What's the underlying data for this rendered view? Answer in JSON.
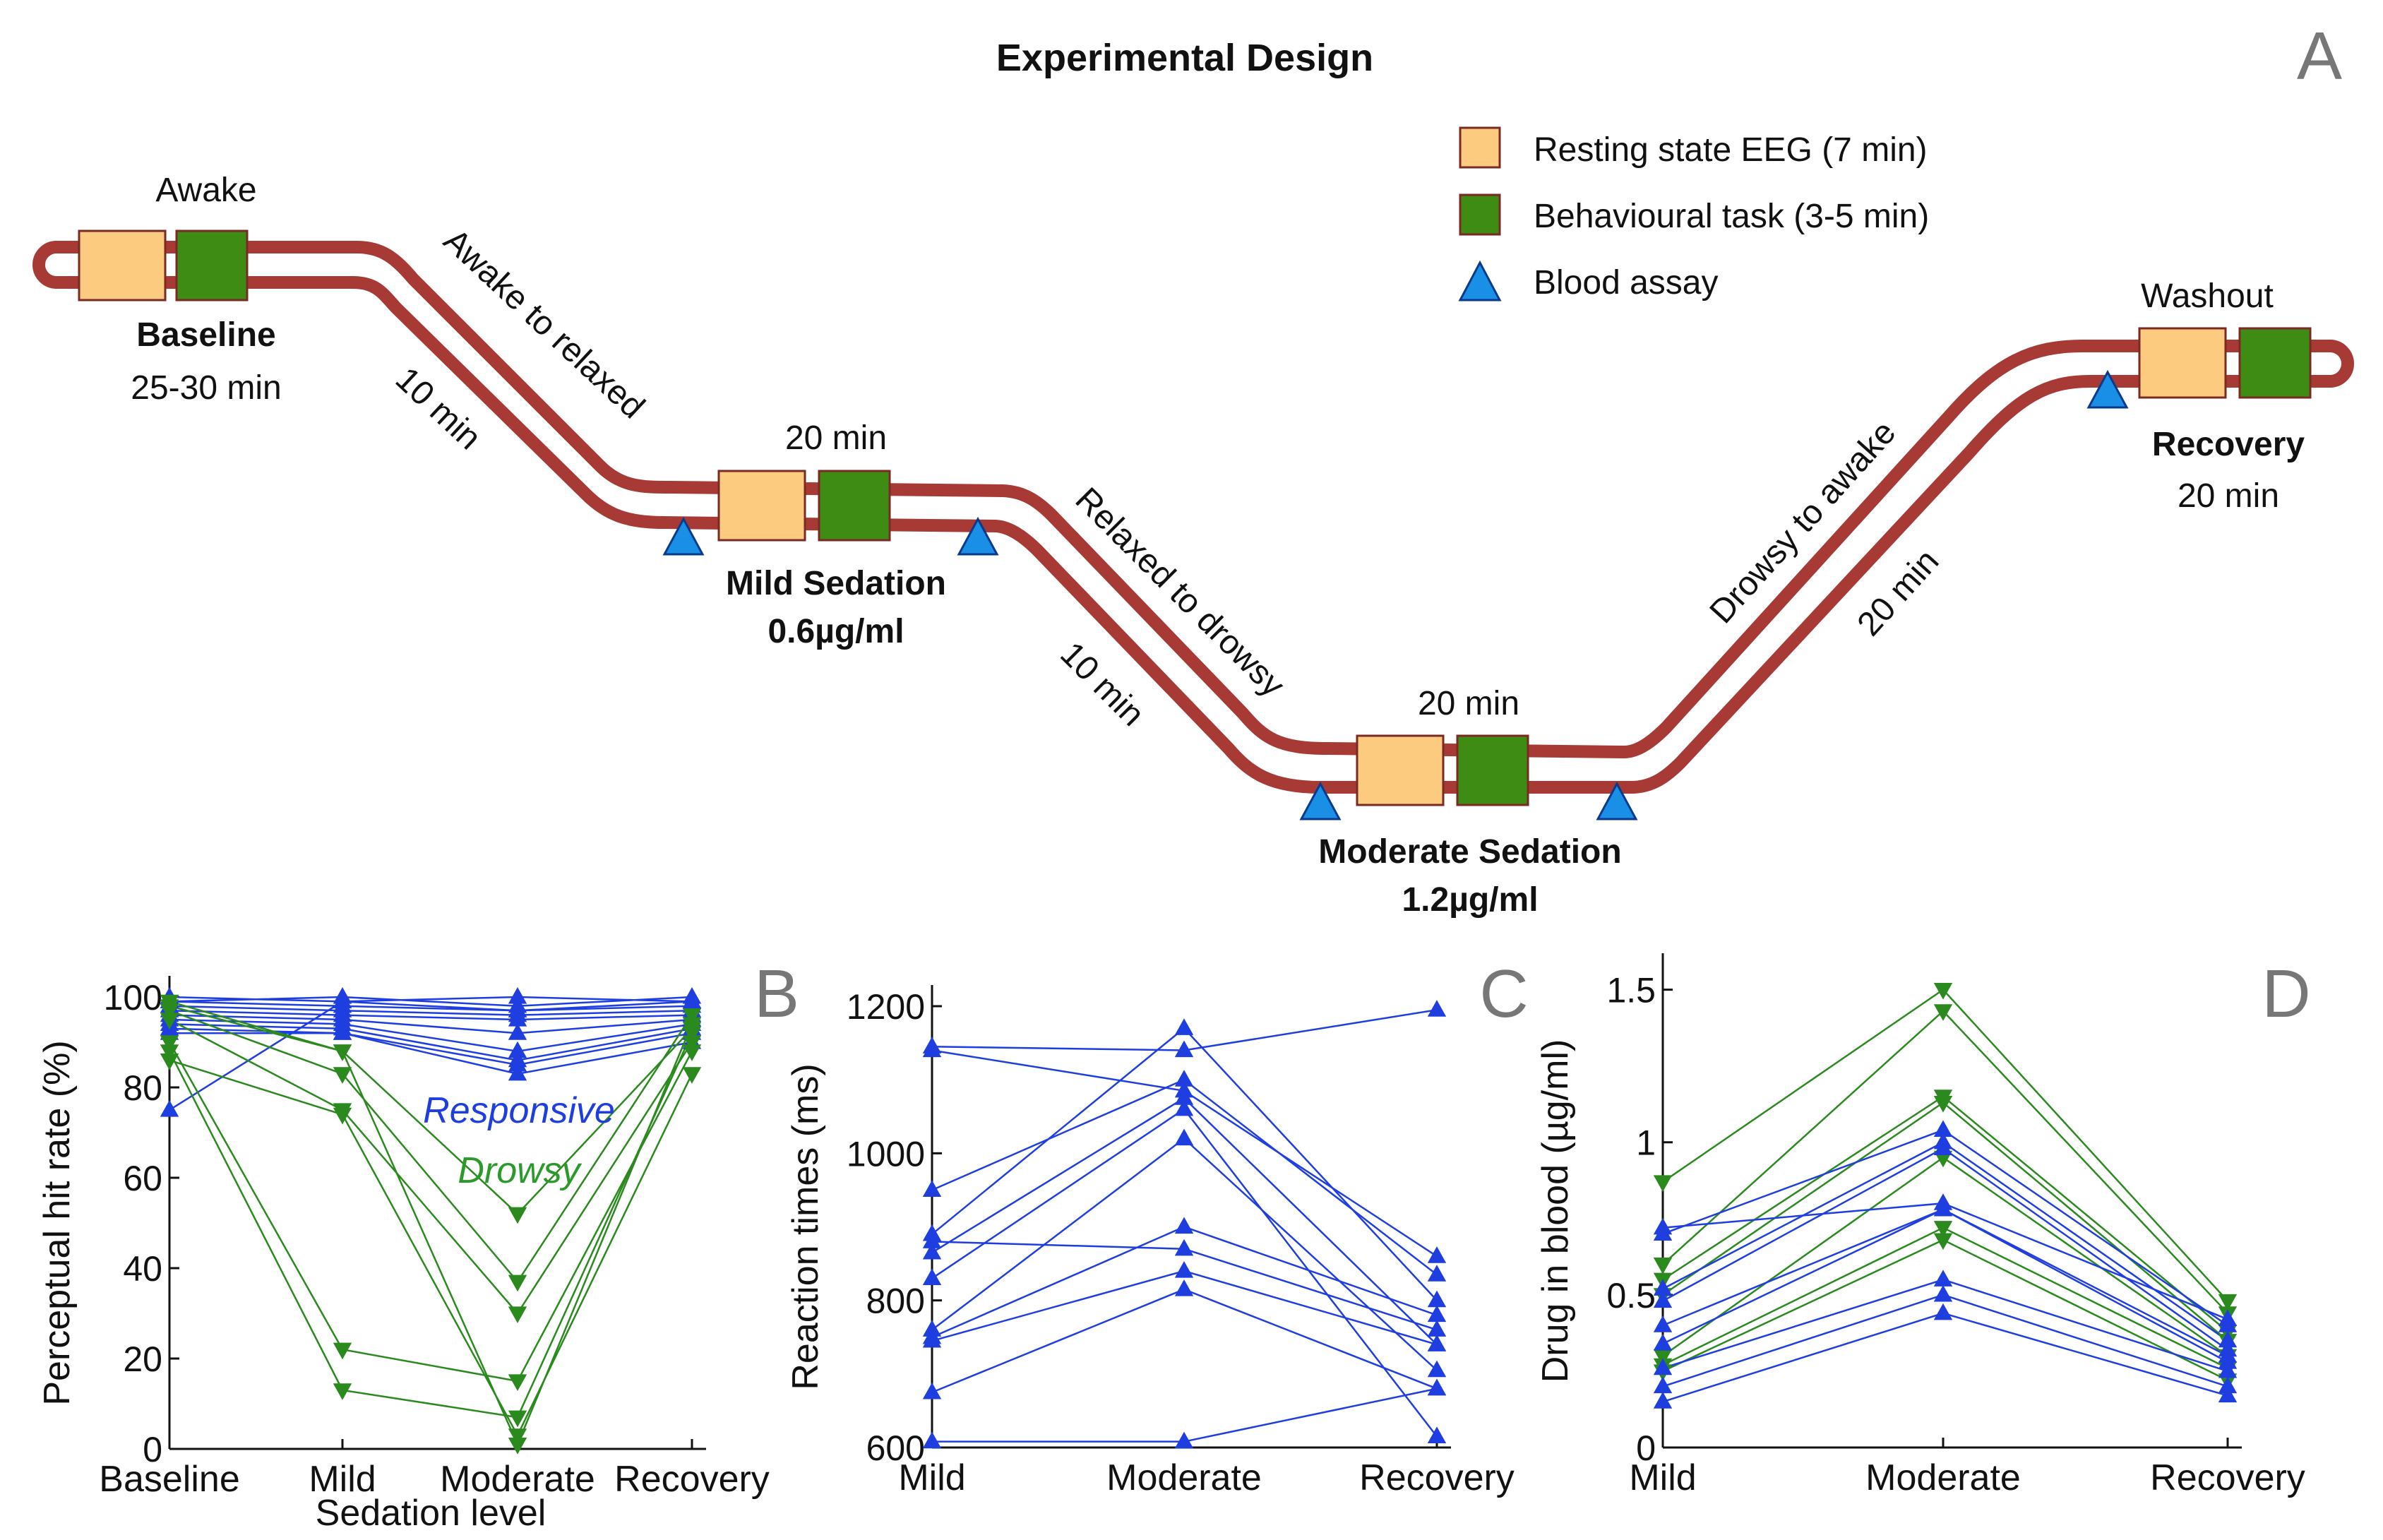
{
  "panel_a": {
    "title": "Experimental Design",
    "panel_letter": "A",
    "legend": [
      {
        "label": "Resting state EEG (7 min)",
        "icon": "square",
        "color": "#fdcb7f"
      },
      {
        "label": "Behavioural task (3-5 min)",
        "icon": "square",
        "color": "#3f8c14"
      },
      {
        "label": "Blood assay",
        "icon": "triangle",
        "color": "#1a8fe6"
      }
    ],
    "colors": {
      "track": "#a83a36",
      "eeg": "#fdcb7f",
      "task": "#3f8c14",
      "blood": "#1a8fe6"
    },
    "stages": [
      {
        "name": "Baseline",
        "above": "Awake",
        "below": "25-30 min"
      },
      {
        "name": "Mild Sedation",
        "above": "20 min",
        "below": "0.6µg/ml"
      },
      {
        "name": "Moderate Sedation",
        "above": "20 min",
        "below": "1.2µg/ml"
      },
      {
        "name": "Recovery",
        "above": "Washout",
        "below": "20 min"
      }
    ],
    "transitions": [
      {
        "text": "Awake to relaxed",
        "duration": "10 min"
      },
      {
        "text": "Relaxed to drowsy",
        "duration": "10 min"
      },
      {
        "text": "Drowsy to awake",
        "duration": "20 min"
      }
    ]
  },
  "chart_data": [
    {
      "panel": "B",
      "type": "line",
      "xlabel": "Sedation level",
      "ylabel": "Perceptual hit rate (%)",
      "categories": [
        "Baseline",
        "Mild",
        "Moderate",
        "Recovery"
      ],
      "ylim": [
        0,
        100
      ],
      "yticks": [
        0,
        20,
        40,
        60,
        80,
        100
      ],
      "annotations": [
        {
          "text": "Responsive",
          "color": "#1f3ee0"
        },
        {
          "text": "Drowsy",
          "color": "#2a9a2a"
        }
      ],
      "series": [
        {
          "group": "responsive",
          "marker": "triangle-up",
          "color": "#1f3ee0",
          "values": [
            100,
            99,
            100,
            99
          ]
        },
        {
          "group": "responsive",
          "marker": "triangle-up",
          "color": "#1f3ee0",
          "values": [
            99,
            100,
            98,
            100
          ]
        },
        {
          "group": "responsive",
          "marker": "triangle-up",
          "color": "#1f3ee0",
          "values": [
            99,
            98,
            97,
            98
          ]
        },
        {
          "group": "responsive",
          "marker": "triangle-up",
          "color": "#1f3ee0",
          "values": [
            98,
            97,
            96,
            97
          ]
        },
        {
          "group": "responsive",
          "marker": "triangle-up",
          "color": "#1f3ee0",
          "values": [
            97,
            96,
            95,
            96
          ]
        },
        {
          "group": "responsive",
          "marker": "triangle-up",
          "color": "#1f3ee0",
          "values": [
            96,
            95,
            92,
            95
          ]
        },
        {
          "group": "responsive",
          "marker": "triangle-up",
          "color": "#1f3ee0",
          "values": [
            95,
            94,
            88,
            94
          ]
        },
        {
          "group": "responsive",
          "marker": "triangle-up",
          "color": "#1f3ee0",
          "values": [
            94,
            93,
            86,
            93
          ]
        },
        {
          "group": "responsive",
          "marker": "triangle-up",
          "color": "#1f3ee0",
          "values": [
            93,
            92,
            85,
            92
          ]
        },
        {
          "group": "responsive",
          "marker": "triangle-up",
          "color": "#1f3ee0",
          "values": [
            92,
            92,
            83,
            90
          ]
        },
        {
          "group": "responsive",
          "marker": "triangle-up",
          "color": "#1f3ee0",
          "values": [
            75,
            99,
            97,
            99
          ]
        },
        {
          "group": "drowsy",
          "marker": "triangle-down",
          "color": "#2a8a1e",
          "values": [
            99,
            88,
            52,
            93
          ]
        },
        {
          "group": "drowsy",
          "marker": "triangle-down",
          "color": "#2a8a1e",
          "values": [
            97,
            83,
            37,
            96
          ]
        },
        {
          "group": "drowsy",
          "marker": "triangle-down",
          "color": "#2a8a1e",
          "values": [
            95,
            75,
            30,
            90
          ]
        },
        {
          "group": "drowsy",
          "marker": "triangle-down",
          "color": "#2a8a1e",
          "values": [
            90,
            22,
            15,
            88
          ]
        },
        {
          "group": "drowsy",
          "marker": "triangle-down",
          "color": "#2a8a1e",
          "values": [
            88,
            13,
            7,
            92
          ]
        },
        {
          "group": "drowsy",
          "marker": "triangle-down",
          "color": "#2a8a1e",
          "values": [
            86,
            74,
            3,
            83
          ]
        },
        {
          "group": "drowsy",
          "marker": "triangle-down",
          "color": "#2a8a1e",
          "values": [
            98,
            88,
            1,
            94
          ]
        }
      ]
    },
    {
      "panel": "C",
      "type": "line",
      "xlabel": "",
      "ylabel": "Reaction times (ms)",
      "categories": [
        "Mild",
        "Moderate",
        "Recovery"
      ],
      "ylim": [
        600,
        1200
      ],
      "yticks": [
        600,
        800,
        1000,
        1200
      ],
      "series": [
        {
          "marker": "triangle-up",
          "color": "#1f3ee0",
          "values": [
            1145,
            1140,
            1195
          ]
        },
        {
          "marker": "triangle-up",
          "color": "#1f3ee0",
          "values": [
            1140,
            1085,
            860
          ]
        },
        {
          "marker": "triangle-up",
          "color": "#1f3ee0",
          "values": [
            950,
            1100,
            835
          ]
        },
        {
          "marker": "triangle-up",
          "color": "#1f3ee0",
          "values": [
            890,
            1170,
            800
          ]
        },
        {
          "marker": "triangle-up",
          "color": "#1f3ee0",
          "values": [
            880,
            870,
            760
          ]
        },
        {
          "marker": "triangle-up",
          "color": "#1f3ee0",
          "values": [
            865,
            1075,
            740
          ]
        },
        {
          "marker": "triangle-up",
          "color": "#1f3ee0",
          "values": [
            830,
            1060,
            615
          ]
        },
        {
          "marker": "triangle-up",
          "color": "#1f3ee0",
          "values": [
            760,
            1020,
            705
          ]
        },
        {
          "marker": "triangle-up",
          "color": "#1f3ee0",
          "values": [
            750,
            900,
            780
          ]
        },
        {
          "marker": "triangle-up",
          "color": "#1f3ee0",
          "values": [
            745,
            840,
            740
          ]
        },
        {
          "marker": "triangle-up",
          "color": "#1f3ee0",
          "values": [
            675,
            815,
            680
          ]
        },
        {
          "marker": "triangle-up",
          "color": "#1f3ee0",
          "values": [
            608,
            608,
            680
          ]
        }
      ]
    },
    {
      "panel": "D",
      "type": "line",
      "xlabel": "",
      "ylabel": "Drug in blood (µg/ml)",
      "categories": [
        "Mild",
        "Moderate",
        "Recovery"
      ],
      "ylim": [
        0,
        1.55
      ],
      "yticks": [
        0,
        0.5,
        1,
        1.5
      ],
      "ytick_labels": [
        "0",
        "0.5",
        "1",
        "1.5"
      ],
      "series": [
        {
          "group": "drowsy",
          "marker": "triangle-down",
          "color": "#2a8a1e",
          "values": [
            0.87,
            1.5,
            0.48
          ]
        },
        {
          "group": "drowsy",
          "marker": "triangle-down",
          "color": "#2a8a1e",
          "values": [
            0.6,
            1.43,
            0.44
          ]
        },
        {
          "group": "drowsy",
          "marker": "triangle-down",
          "color": "#2a8a1e",
          "values": [
            0.55,
            1.15,
            0.38
          ]
        },
        {
          "group": "drowsy",
          "marker": "triangle-down",
          "color": "#2a8a1e",
          "values": [
            0.5,
            1.13,
            0.35
          ]
        },
        {
          "group": "drowsy",
          "marker": "triangle-down",
          "color": "#2a8a1e",
          "values": [
            0.3,
            0.95,
            0.3
          ]
        },
        {
          "group": "drowsy",
          "marker": "triangle-down",
          "color": "#2a8a1e",
          "values": [
            0.27,
            0.72,
            0.26
          ]
        },
        {
          "group": "drowsy",
          "marker": "triangle-down",
          "color": "#2a8a1e",
          "values": [
            0.25,
            0.68,
            0.22
          ]
        },
        {
          "group": "responsive",
          "marker": "triangle-up",
          "color": "#1f3ee0",
          "values": [
            0.72,
            0.8,
            0.42
          ]
        },
        {
          "group": "responsive",
          "marker": "triangle-up",
          "color": "#1f3ee0",
          "values": [
            0.7,
            1.04,
            0.4
          ]
        },
        {
          "group": "responsive",
          "marker": "triangle-up",
          "color": "#1f3ee0",
          "values": [
            0.52,
            1.0,
            0.35
          ]
        },
        {
          "group": "responsive",
          "marker": "triangle-up",
          "color": "#1f3ee0",
          "values": [
            0.48,
            0.98,
            0.32
          ]
        },
        {
          "group": "responsive",
          "marker": "triangle-up",
          "color": "#1f3ee0",
          "values": [
            0.4,
            0.78,
            0.3
          ]
        },
        {
          "group": "responsive",
          "marker": "triangle-up",
          "color": "#1f3ee0",
          "values": [
            0.34,
            0.78,
            0.28
          ]
        },
        {
          "group": "responsive",
          "marker": "triangle-up",
          "color": "#1f3ee0",
          "values": [
            0.26,
            0.55,
            0.25
          ]
        },
        {
          "group": "responsive",
          "marker": "triangle-up",
          "color": "#1f3ee0",
          "values": [
            0.2,
            0.5,
            0.2
          ]
        },
        {
          "group": "responsive",
          "marker": "triangle-up",
          "color": "#1f3ee0",
          "values": [
            0.15,
            0.44,
            0.17
          ]
        }
      ]
    }
  ]
}
